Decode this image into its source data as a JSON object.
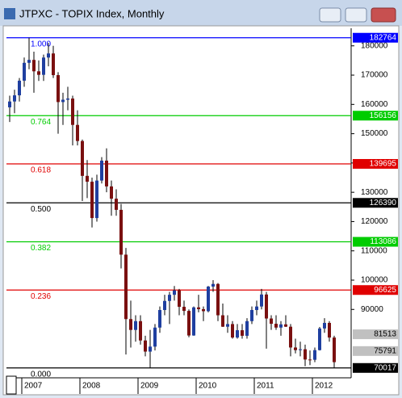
{
  "chart_data": {
    "type": "candlestick",
    "title": "JTPXC - TOPIX Index, Monthly",
    "categories": [
      null,
      null,
      null,
      "2007",
      null,
      null,
      null,
      null,
      null,
      null,
      null,
      null,
      null,
      null,
      null,
      "2008",
      null,
      null,
      null,
      null,
      null,
      null,
      null,
      null,
      null,
      null,
      null,
      "2009",
      null,
      null,
      null,
      null,
      null,
      null,
      null,
      null,
      null,
      null,
      null,
      "2010",
      null,
      null,
      null,
      null,
      null,
      null,
      null,
      null,
      null,
      null,
      null,
      "2011",
      null,
      null,
      null,
      null,
      null,
      null,
      null,
      null,
      null,
      null,
      null,
      "2012",
      null,
      null,
      null,
      null
    ],
    "open": [
      159000,
      161000,
      163100,
      168100,
      174200,
      175200,
      171300,
      170100,
      176000,
      177400,
      170000,
      160800,
      161600,
      162000,
      153000,
      147500,
      135600,
      133600,
      121200,
      134000,
      140800,
      132000,
      127800,
      124000,
      108700,
      86700,
      83000,
      86000,
      79400,
      75600,
      77300,
      83800,
      89800,
      92900,
      95000,
      96500,
      90900,
      89500,
      81100,
      90700,
      90100,
      89400,
      97800,
      98700,
      88000,
      84100,
      85000,
      80400,
      82900,
      81000,
      86000,
      89800,
      91000,
      95100,
      86900,
      85100,
      83800,
      84900,
      84100,
      77000,
      76100,
      76400,
      72900,
      72800,
      76100,
      83500,
      85400,
      80400
    ],
    "high": [
      163000,
      165000,
      169000,
      176000,
      182764,
      178000,
      175000,
      177000,
      181000,
      180000,
      171000,
      164000,
      166000,
      163000,
      158000,
      148000,
      141000,
      135000,
      136000,
      142000,
      145000,
      134000,
      131000,
      126000,
      111000,
      93000,
      88000,
      88000,
      81000,
      83000,
      85000,
      91000,
      95000,
      96000,
      98000,
      97000,
      93000,
      90000,
      91000,
      95000,
      91000,
      98000,
      100000,
      99000,
      92000,
      88000,
      86000,
      85000,
      85000,
      87000,
      91000,
      93000,
      97000,
      96000,
      88000,
      88000,
      86000,
      88000,
      85000,
      80000,
      79000,
      78000,
      76000,
      77000,
      84000,
      87000,
      86000,
      81000
    ],
    "low": [
      154000,
      157000,
      161000,
      166000,
      172000,
      164000,
      168000,
      168000,
      173000,
      169000,
      150000,
      153000,
      158000,
      146000,
      146000,
      127000,
      128000,
      118000,
      120000,
      133000,
      130000,
      122000,
      122000,
      104000,
      74600,
      77000,
      79000,
      78000,
      74000,
      70100,
      76000,
      82000,
      88000,
      85000,
      93000,
      88000,
      88000,
      80500,
      81000,
      89000,
      86000,
      89000,
      96000,
      86000,
      84000,
      82000,
      80000,
      80000,
      80000,
      80000,
      85000,
      88000,
      90000,
      76600,
      83000,
      83000,
      81000,
      84000,
      74000,
      75000,
      74000,
      70600,
      71000,
      72000,
      76000,
      82000,
      79000,
      70017
    ],
    "close": [
      161000,
      163100,
      168100,
      174200,
      175200,
      171300,
      170100,
      176000,
      177400,
      170000,
      160800,
      161600,
      162000,
      153000,
      147500,
      135600,
      133600,
      121200,
      134000,
      140800,
      132000,
      127800,
      124000,
      108700,
      86700,
      83000,
      86000,
      79400,
      75600,
      77300,
      83800,
      89800,
      92900,
      95000,
      96500,
      90900,
      89500,
      81100,
      90700,
      90100,
      89400,
      97800,
      98700,
      88000,
      84100,
      85000,
      80400,
      82900,
      81000,
      86000,
      89800,
      91000,
      95100,
      86900,
      85100,
      83800,
      84900,
      84100,
      77000,
      76100,
      76400,
      72900,
      72800,
      76100,
      83500,
      85400,
      80400,
      72000
    ],
    "up_color": "#1f3fa0",
    "down_color": "#7a1010",
    "ylim": [
      67200,
      186000
    ],
    "yticks": [
      90000,
      100000,
      110000,
      120000,
      130000,
      140000,
      150000,
      160000,
      170000,
      180000
    ],
    "fib_levels": [
      {
        "label": "1.000",
        "value": 182764,
        "color": "#0000ff"
      },
      {
        "label": "0.764",
        "value": 156156,
        "color": "#00cc00"
      },
      {
        "label": "0.618",
        "value": 139695,
        "color": "#e00000"
      },
      {
        "label": "0.500",
        "value": 126390,
        "color": "#000000"
      },
      {
        "label": "0.382",
        "value": 113086,
        "color": "#00cc00"
      },
      {
        "label": "0.236",
        "value": 96625,
        "color": "#e00000"
      },
      {
        "label": "0.000",
        "value": 70017,
        "color": "#000000"
      }
    ],
    "price_markers": [
      {
        "value": 81513,
        "color": "#c0c0c0"
      },
      {
        "value": 75791,
        "color": "#c0c0c0"
      }
    ]
  }
}
